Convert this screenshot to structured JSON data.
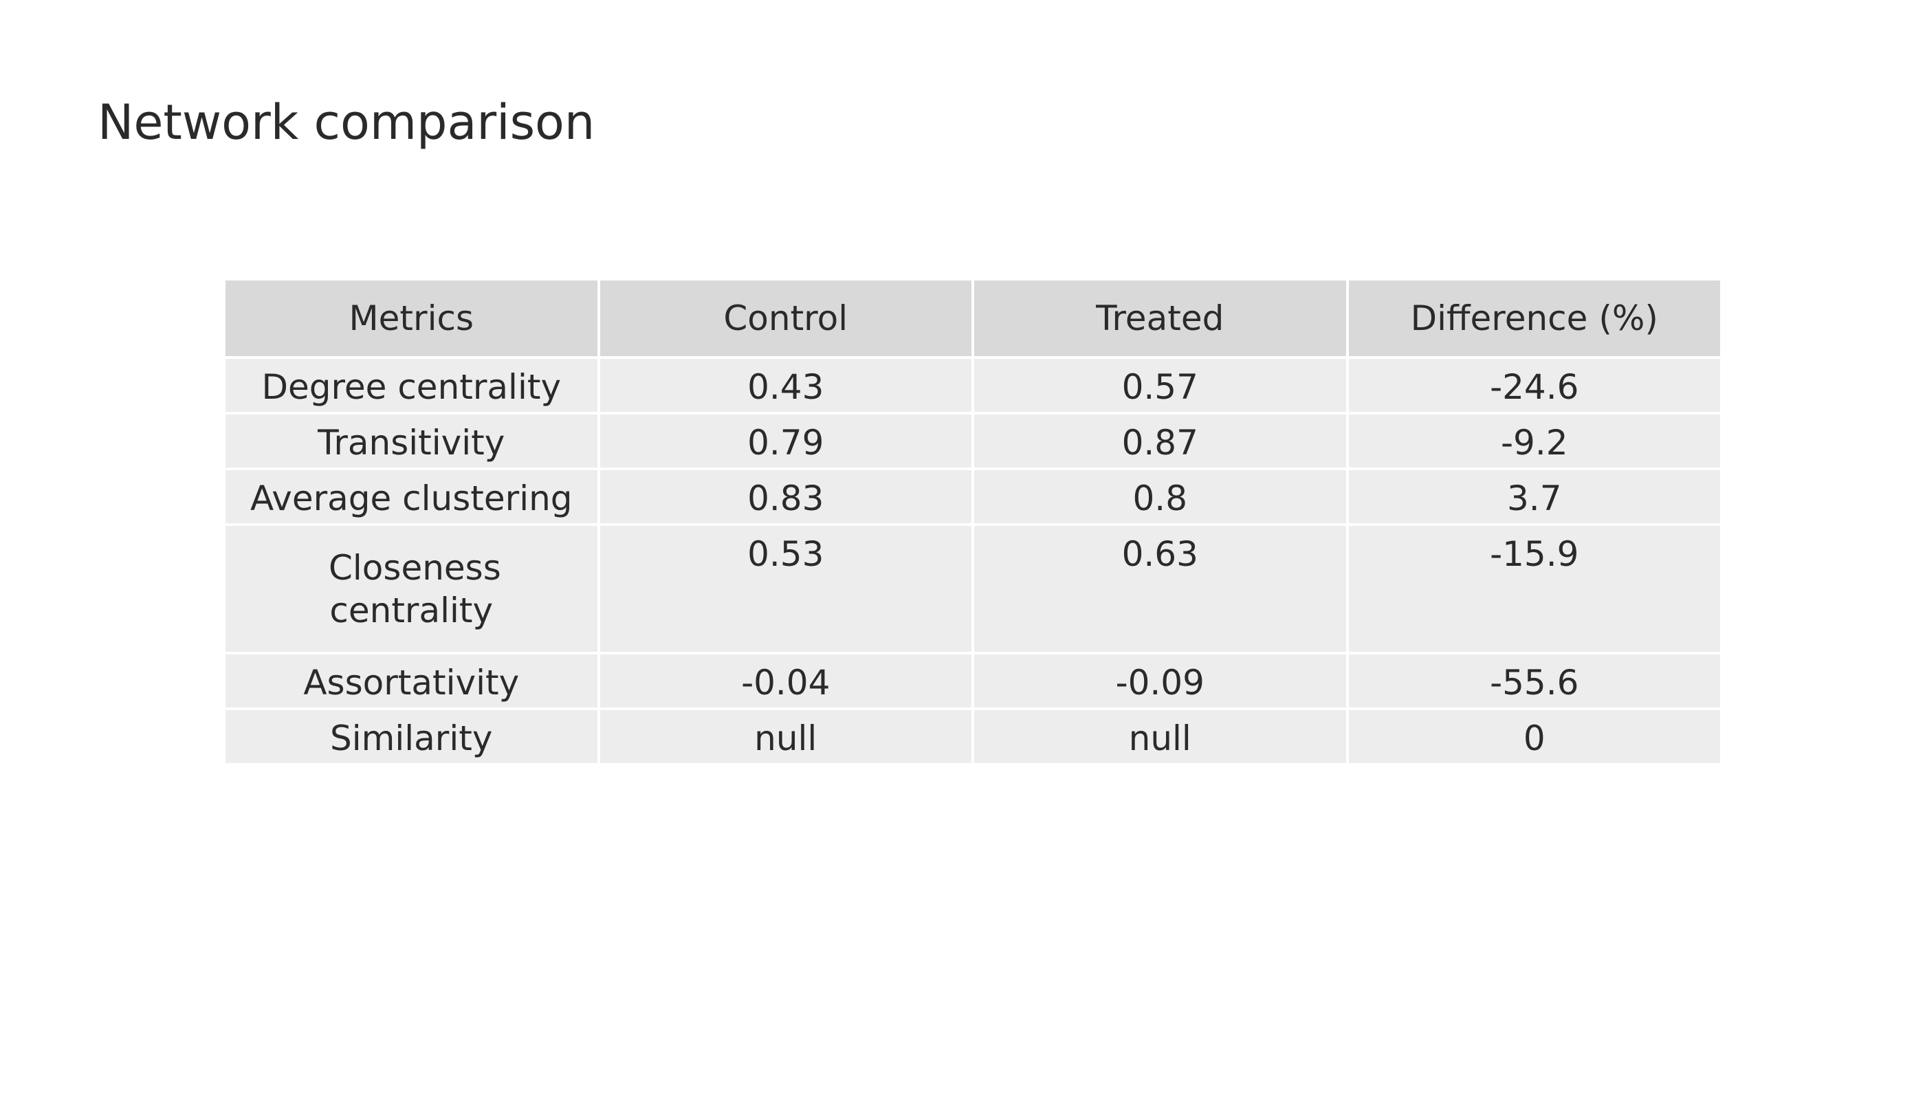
{
  "page": {
    "title": "Network comparison"
  },
  "chart_data": {
    "type": "table",
    "columns": [
      "Metrics",
      "Control",
      "Treated",
      "Difference (%)"
    ],
    "rows": [
      [
        "Degree centrality",
        "0.43",
        "0.57",
        "-24.6"
      ],
      [
        "Transitivity",
        "0.79",
        "0.87",
        "-9.2"
      ],
      [
        "Average clustering",
        "0.83",
        "0.8",
        "3.7"
      ],
      [
        "Closeness centrality",
        "0.53",
        "0.63",
        "-15.9"
      ],
      [
        "Assortativity",
        "-0.04",
        "-0.09",
        "-55.6"
      ],
      [
        "Similarity",
        "null",
        "null",
        "0"
      ]
    ]
  },
  "colors": {
    "header_background": "#d9d9d9",
    "cell_background": "#ededed",
    "grid_line": "#ffffff",
    "text": "#2a2a2a"
  }
}
